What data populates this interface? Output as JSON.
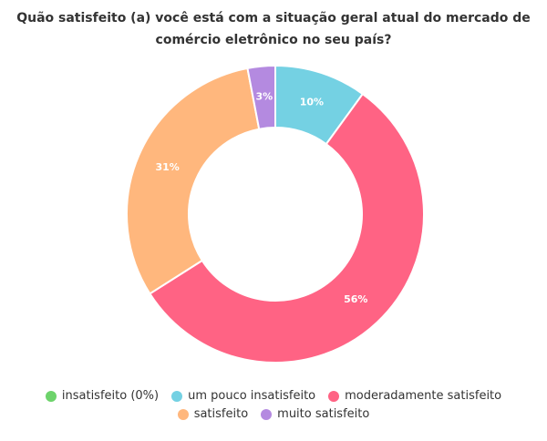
{
  "chart_data": {
    "type": "pie",
    "variant": "donut",
    "title_lines": [
      "Quão satisfeito (a) você está com a situação geral atual do mercado de",
      "comércio eletrônico no seu país?"
    ],
    "series": [
      {
        "name": "insatisfeito (0%)",
        "value": 0,
        "label": "",
        "color": "#6dd36b"
      },
      {
        "name": "um pouco insatisfeito",
        "value": 10,
        "label": "10%",
        "color": "#74d1e3"
      },
      {
        "name": "moderadamente satisfeito",
        "value": 56,
        "label": "56%",
        "color": "#ff6384"
      },
      {
        "name": "satisfeito",
        "value": 31,
        "label": "31%",
        "color": "#ffb77d"
      },
      {
        "name": "muito satisfeito",
        "value": 3,
        "label": "3%",
        "color": "#b48ae0"
      }
    ],
    "legend_position": "bottom"
  }
}
